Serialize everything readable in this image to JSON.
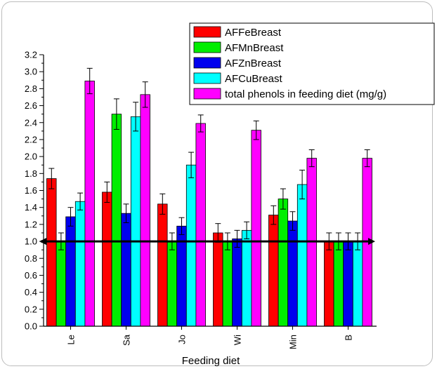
{
  "chart_data": {
    "type": "bar",
    "xlabel": "Feeding diet",
    "ylabel": "",
    "ylim": [
      0,
      3.2
    ],
    "yticks": [
      "0.0",
      "0.2",
      "0.4",
      "0.6",
      "0.8",
      "1.0",
      "1.2",
      "1.4",
      "1.6",
      "1.8",
      "2.0",
      "2.2",
      "2.4",
      "2.6",
      "2.8",
      "3.0",
      "3.2"
    ],
    "categories": [
      "Le",
      "Sa",
      "Jo",
      "Wi",
      "Min",
      "B"
    ],
    "reference_line": 1.0,
    "legend_position": "top-right",
    "series": [
      {
        "name": "AFFeBreast",
        "color": "#ff0000",
        "values": [
          1.74,
          1.58,
          1.44,
          1.1,
          1.31,
          1.0
        ],
        "errors": [
          0.12,
          0.12,
          0.12,
          0.11,
          0.11,
          0.1
        ]
      },
      {
        "name": "AFMnBreast",
        "color": "#00ee00",
        "values": [
          1.0,
          2.5,
          1.0,
          1.0,
          1.5,
          1.0
        ],
        "errors": [
          0.1,
          0.18,
          0.1,
          0.1,
          0.12,
          0.1
        ]
      },
      {
        "name": "AFZnBreast",
        "color": "#0000ee",
        "values": [
          1.29,
          1.33,
          1.18,
          1.03,
          1.24,
          1.0
        ],
        "errors": [
          0.11,
          0.11,
          0.1,
          0.1,
          0.11,
          0.1
        ]
      },
      {
        "name": "AFCuBreast",
        "color": "#00ffff",
        "values": [
          1.47,
          2.47,
          1.9,
          1.13,
          1.67,
          1.0
        ],
        "errors": [
          0.1,
          0.17,
          0.15,
          0.1,
          0.17,
          0.1
        ]
      },
      {
        "name": "total phenols in feeding diet (mg/g)",
        "color": "#ff00ff",
        "values": [
          2.89,
          2.73,
          2.39,
          2.31,
          1.98,
          1.98
        ],
        "errors": [
          0.15,
          0.15,
          0.1,
          0.11,
          0.1,
          0.1
        ]
      }
    ]
  }
}
